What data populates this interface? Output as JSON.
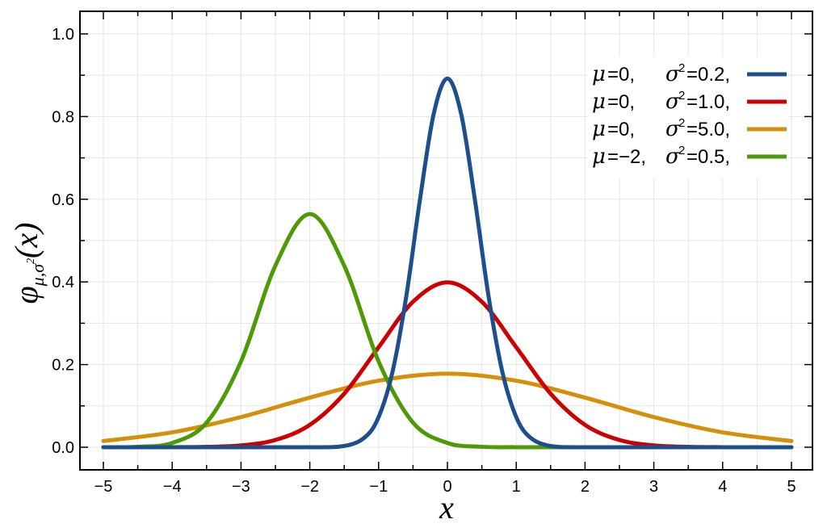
{
  "chart_data": {
    "type": "line",
    "xlabel": "x",
    "ylabel": {
      "base": "φ",
      "subscript": "μ,σ",
      "subscript_sup": "2",
      "argument": "(x)"
    },
    "xlim": [
      -5.0,
      5.0
    ],
    "ylim": [
      0.0,
      1.0
    ],
    "xticks": [
      -5,
      -4,
      -3,
      -2,
      -1,
      0,
      1,
      2,
      3,
      4,
      5
    ],
    "xtick_labels": [
      "−5",
      "−4",
      "−3",
      "−2",
      "−1",
      "0",
      "1",
      "2",
      "3",
      "4",
      "5"
    ],
    "yticks": [
      0.0,
      0.2,
      0.4,
      0.6,
      0.8,
      1.0
    ],
    "ytick_labels": [
      "0.0",
      "0.2",
      "0.4",
      "0.6",
      "0.8",
      "1.0"
    ],
    "grid": true,
    "legend_position": "top-right",
    "series": [
      {
        "legend": {
          "mu_sym": "μ",
          "mu_val": "=0,",
          "sigma_sym": "σ",
          "sigma_sup": "2",
          "sigma_val": "=0.2,"
        },
        "mu": 0,
        "variance": 0.2,
        "color": "#1f4e8c",
        "x": [
          -5,
          -4,
          -3,
          -2,
          -1.5,
          -1.2,
          -1,
          -0.8,
          -0.6,
          -0.4,
          -0.2,
          0,
          0.2,
          0.4,
          0.6,
          0.8,
          1,
          1.2,
          1.5,
          2,
          3,
          4,
          5
        ],
        "y": [
          0.0,
          0.0,
          0.0,
          0.0,
          0.003,
          0.024,
          0.073,
          0.181,
          0.363,
          0.598,
          0.806,
          0.892,
          0.806,
          0.598,
          0.363,
          0.181,
          0.073,
          0.024,
          0.003,
          0.0,
          0.0,
          0.0,
          0.0
        ]
      },
      {
        "legend": {
          "mu_sym": "μ",
          "mu_val": "=0,",
          "sigma_sym": "σ",
          "sigma_sup": "2",
          "sigma_val": "=1.0,"
        },
        "mu": 0,
        "variance": 1.0,
        "color": "#cc0000",
        "x": [
          -5,
          -4,
          -3.5,
          -3,
          -2.5,
          -2,
          -1.5,
          -1,
          -0.5,
          0,
          0.5,
          1,
          1.5,
          2,
          2.5,
          3,
          3.5,
          4,
          5
        ],
        "y": [
          0.0,
          0.0001,
          0.0009,
          0.0044,
          0.0175,
          0.054,
          0.1295,
          0.242,
          0.352,
          0.399,
          0.352,
          0.242,
          0.1295,
          0.054,
          0.0175,
          0.0044,
          0.0009,
          0.0001,
          0.0
        ]
      },
      {
        "legend": {
          "mu_sym": "μ",
          "mu_val": "=0,",
          "sigma_sym": "σ",
          "sigma_sup": "2",
          "sigma_val": "=5.0,"
        },
        "mu": 0,
        "variance": 5.0,
        "color": "#d4900a",
        "x": [
          -5,
          -4,
          -3,
          -2,
          -1,
          0,
          1,
          2,
          3,
          4,
          5
        ],
        "y": [
          0.015,
          0.036,
          0.073,
          0.12,
          0.161,
          0.178,
          0.161,
          0.12,
          0.073,
          0.036,
          0.015
        ]
      },
      {
        "legend": {
          "mu_sym": "μ",
          "mu_val": "=−2,",
          "sigma_sym": "σ",
          "sigma_sup": "2",
          "sigma_val": "=0.5,"
        },
        "mu": -2,
        "variance": 0.5,
        "color": "#4e9a06",
        "x": [
          -5,
          -4.5,
          -4,
          -3.5,
          -3,
          -2.5,
          -2,
          -1.5,
          -1,
          -0.5,
          0,
          0.5,
          1,
          2,
          3,
          4,
          5
        ],
        "y": [
          0.0001,
          0.0011,
          0.0103,
          0.0595,
          0.2076,
          0.4394,
          0.5642,
          0.4394,
          0.2076,
          0.0595,
          0.0103,
          0.0011,
          0.0001,
          0.0,
          0.0,
          0.0,
          0.0
        ]
      }
    ]
  }
}
